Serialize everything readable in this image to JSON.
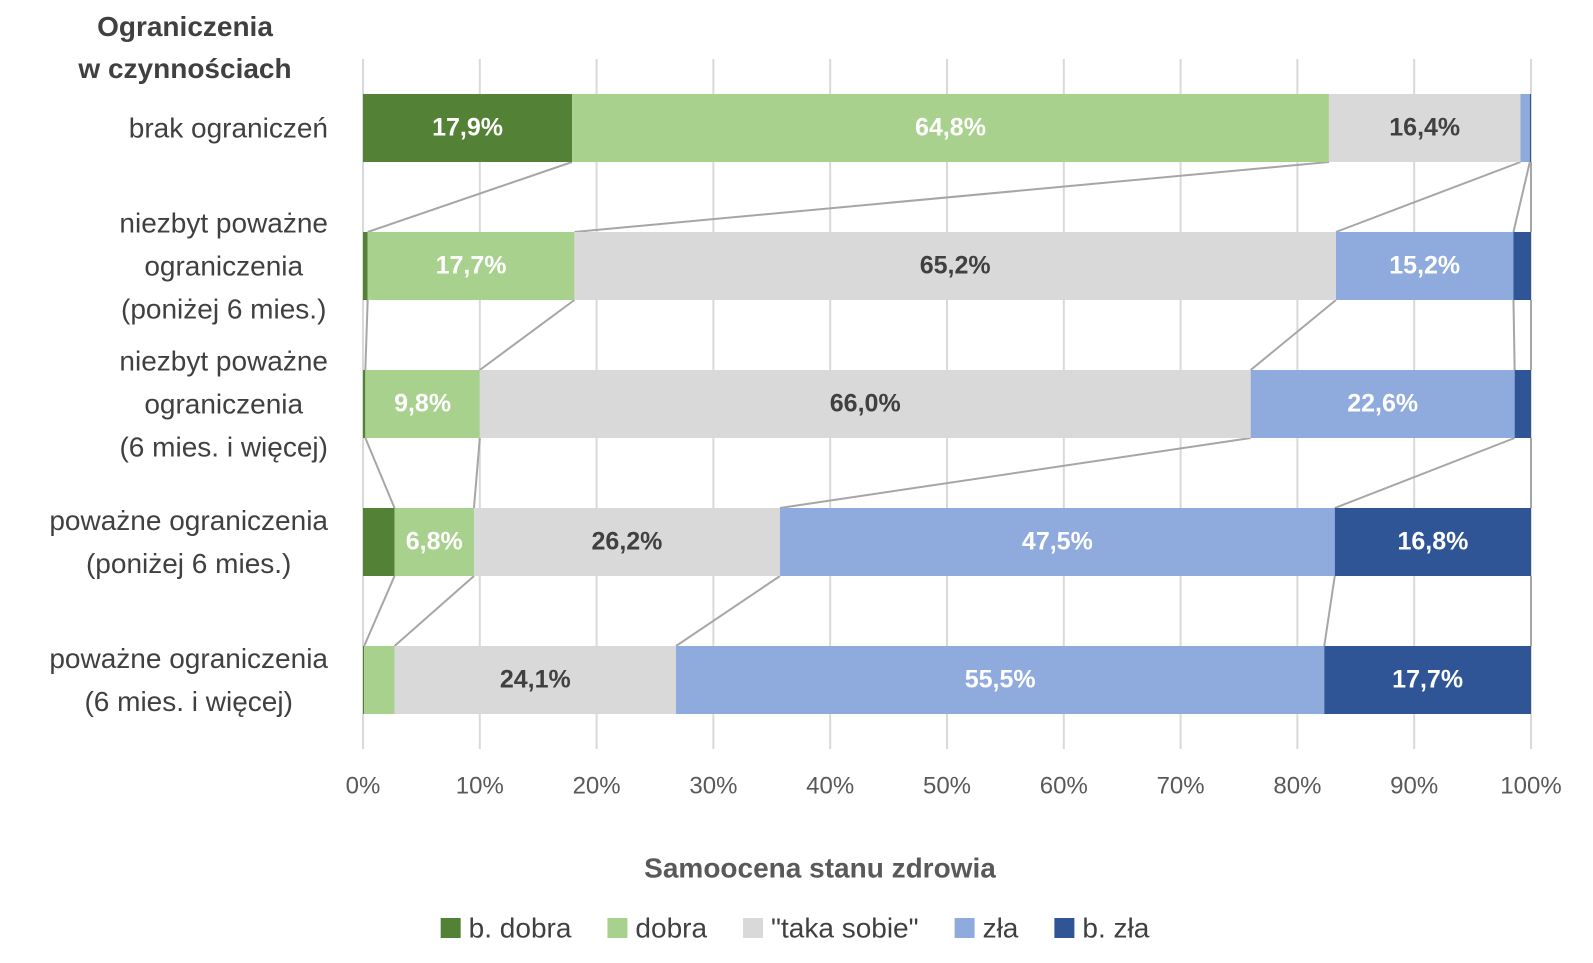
{
  "chart_data": {
    "type": "stacked_barh",
    "ylabel": "Ograniczenia\nw czynnościach",
    "xlabel": "Samoocena stanu zdrowia",
    "categories": [
      "brak ograniczeń",
      "niezbyt poważne\nograniczenia\n(poniżej 6 mies.)",
      "niezbyt poważne\nograniczenia\n(6 mies. i więcej)",
      "poważne ograniczenia\n(poniżej 6 mies.)",
      "poważne ograniczenia\n(6 mies. i więcej)"
    ],
    "series": [
      {
        "name": "b. dobra",
        "color": "#538135",
        "label_color": "#ffffff",
        "values": [
          17.9,
          0.4,
          0.2,
          2.7,
          0.1
        ],
        "value_labels": [
          "17,9%",
          null,
          null,
          null,
          null
        ]
      },
      {
        "name": "dobra",
        "color": "#a9d18e",
        "label_color": "#ffffff",
        "values": [
          64.8,
          17.7,
          9.8,
          6.8,
          2.6
        ],
        "value_labels": [
          "64,8%",
          "17,7%",
          "9,8%",
          "6,8%",
          null
        ]
      },
      {
        "name": "\"taka sobie\"",
        "color": "#d9d9d9",
        "label_color": "#404040",
        "values": [
          16.4,
          65.2,
          66.0,
          26.2,
          24.1
        ],
        "value_labels": [
          "16,4%",
          "65,2%",
          "66,0%",
          "26,2%",
          "24,1%"
        ]
      },
      {
        "name": "zła",
        "color": "#8faadc",
        "label_color": "#ffffff",
        "values": [
          0.8,
          15.2,
          22.6,
          47.5,
          55.5
        ],
        "value_labels": [
          null,
          "15,2%",
          "22,6%",
          "47,5%",
          "55,5%"
        ]
      },
      {
        "name": "b. zła",
        "color": "#2f5597",
        "label_color": "#ffffff",
        "values": [
          0.1,
          1.5,
          1.4,
          16.8,
          17.7
        ],
        "value_labels": [
          null,
          null,
          null,
          "16,8%",
          "17,7%"
        ]
      }
    ],
    "xlim": [
      0,
      100
    ],
    "xticks": [
      {
        "value": 0,
        "label": "0%"
      },
      {
        "value": 10,
        "label": "10%"
      },
      {
        "value": 20,
        "label": "20%"
      },
      {
        "value": 30,
        "label": "30%"
      },
      {
        "value": 40,
        "label": "40%"
      },
      {
        "value": 50,
        "label": "50%"
      },
      {
        "value": 60,
        "label": "60%"
      },
      {
        "value": 70,
        "label": "70%"
      },
      {
        "value": 80,
        "label": "80%"
      },
      {
        "value": 90,
        "label": "90%"
      },
      {
        "value": 100,
        "label": "100%"
      }
    ],
    "grid": true,
    "connectors": true,
    "legend": "bottom"
  }
}
